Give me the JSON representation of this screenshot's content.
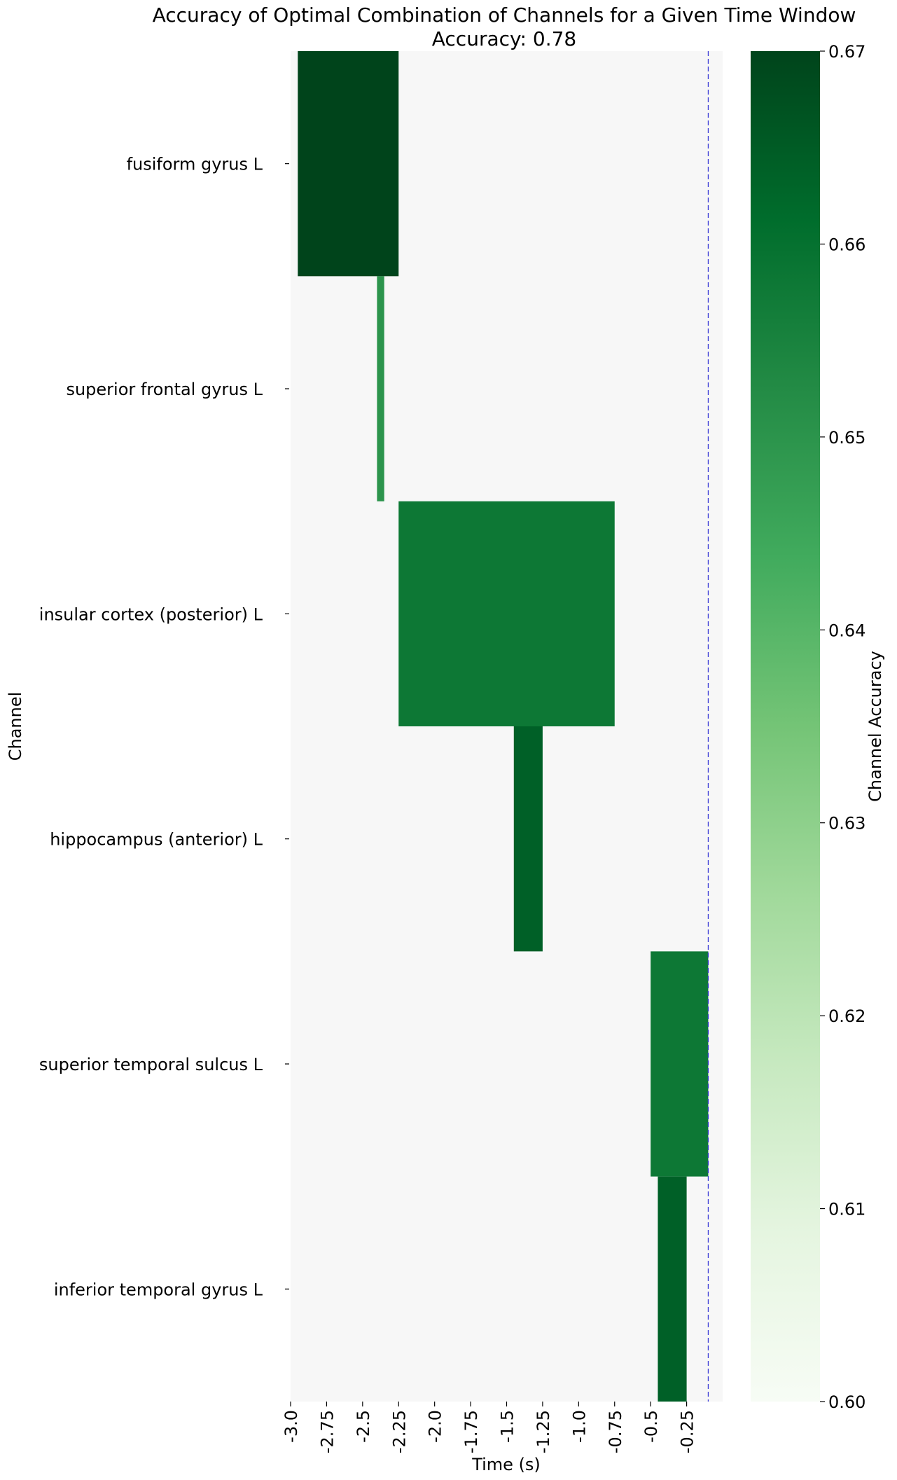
{
  "chart_data": {
    "type": "heatmap",
    "title": "Accuracy of Optimal Combination of Channels for a Given Time Window",
    "subtitle": "Accuracy: 0.78",
    "xlabel": "Time (s)",
    "ylabel": "Channel",
    "colorbar_label": "Channel Accuracy",
    "xlim": [
      -3.0,
      0.0
    ],
    "x_ticks": [
      -3.0,
      -2.75,
      -2.5,
      -2.25,
      -2.0,
      -1.75,
      -1.5,
      -1.25,
      -1.0,
      -0.75,
      -0.5,
      -0.25
    ],
    "x_tick_labels": [
      "-3.0",
      "-2.75",
      "-2.5",
      "-2.25",
      "-2.0",
      "-1.75",
      "-1.5",
      "-1.25",
      "-1.0",
      "-0.75",
      "-0.5",
      "-0.25"
    ],
    "channels": [
      "fusiform gyrus L",
      "superior frontal gyrus L",
      "insular cortex (posterior) L",
      "hippocampus (anterior) L",
      "superior temporal sulcus L",
      "inferior temporal gyrus L"
    ],
    "cells": [
      {
        "channel": 0,
        "t_start": -2.95,
        "t_end": -2.25,
        "accuracy": 0.67
      },
      {
        "channel": 1,
        "t_start": -2.4,
        "t_end": -2.35,
        "accuracy": 0.65
      },
      {
        "channel": 2,
        "t_start": -2.25,
        "t_end": -0.75,
        "accuracy": 0.658
      },
      {
        "channel": 3,
        "t_start": -1.45,
        "t_end": -1.25,
        "accuracy": 0.664
      },
      {
        "channel": 4,
        "t_start": -0.5,
        "t_end": -0.1,
        "accuracy": 0.658
      },
      {
        "channel": 5,
        "t_start": -0.45,
        "t_end": -0.25,
        "accuracy": 0.664
      }
    ],
    "reference_line_x": -0.1,
    "reference_line_color": "#3b3bd6",
    "background_color": "#f7f7f7",
    "colorbar": {
      "vmin": 0.6,
      "vmax": 0.67,
      "ticks": [
        0.6,
        0.61,
        0.62,
        0.63,
        0.64,
        0.65,
        0.66,
        0.67
      ],
      "tick_labels": [
        "0.60",
        "0.61",
        "0.62",
        "0.63",
        "0.64",
        "0.65",
        "0.66",
        "0.67"
      ],
      "colors": [
        "#f7fcf5",
        "#e5f5e0",
        "#c7e9c0",
        "#a1d99b",
        "#74c476",
        "#41ab5d",
        "#238b45",
        "#006d2c",
        "#00441b"
      ]
    }
  }
}
